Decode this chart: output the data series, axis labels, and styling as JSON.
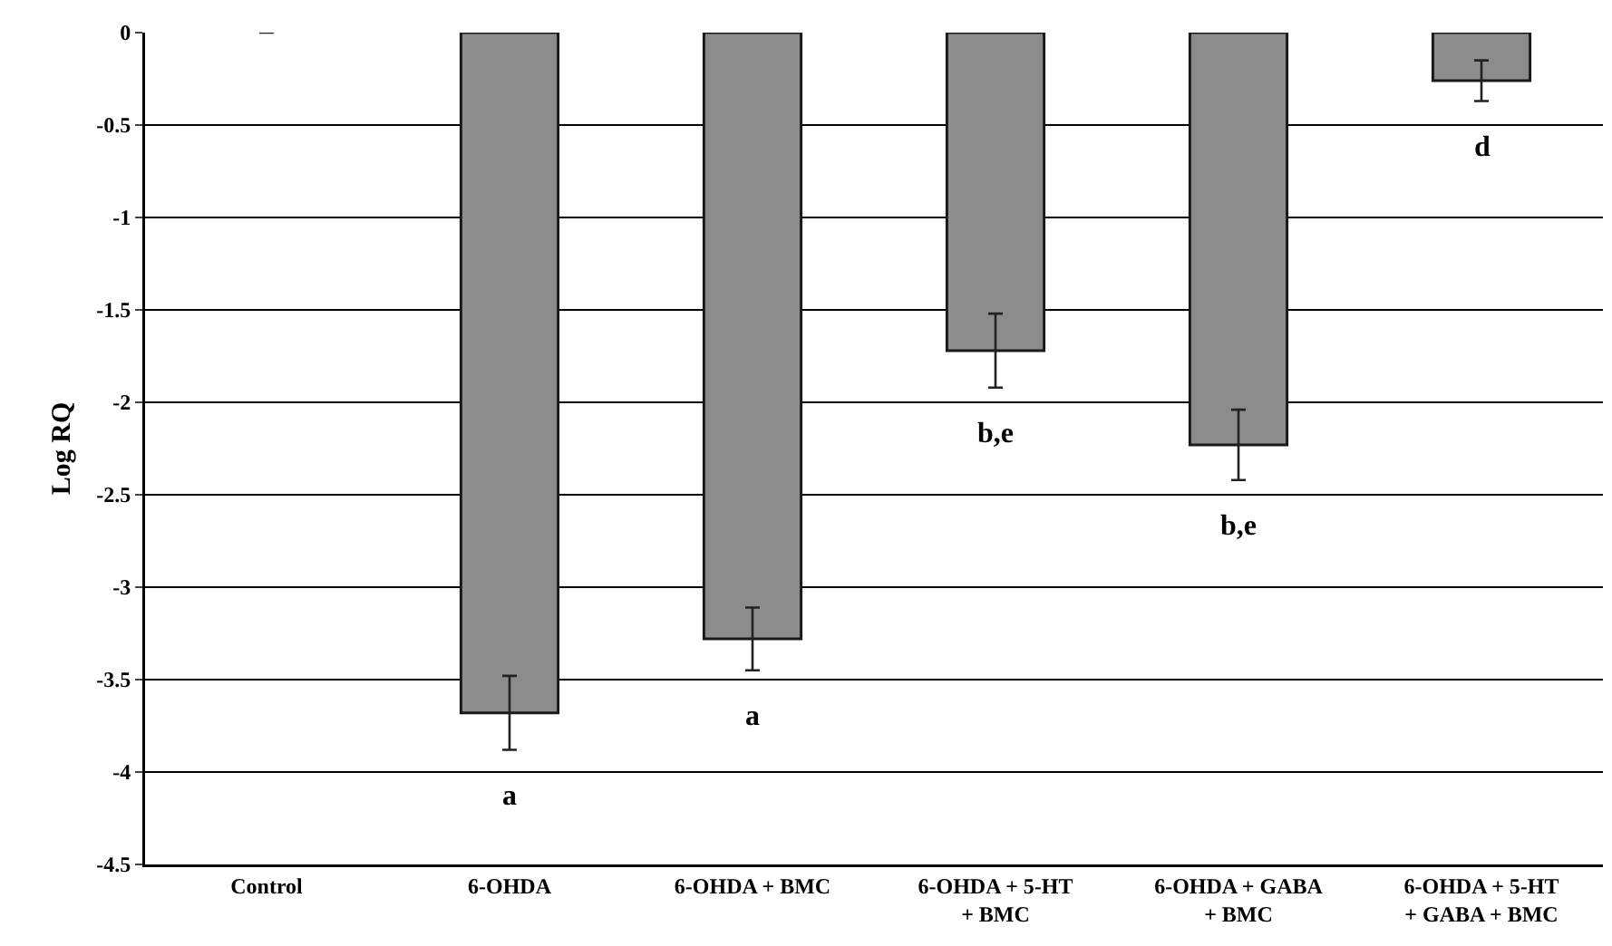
{
  "chart_data": {
    "type": "bar",
    "ylabel": "Log RQ",
    "categories": [
      "Control",
      "6-OHDA",
      "6-OHDA + BMC",
      "6-OHDA + 5-HT\n+ BMC",
      "6-OHDA + GABA\n+ BMC",
      "6-OHDA + 5-HT\n+ GABA + BMC"
    ],
    "values": [
      0,
      -3.68,
      -3.28,
      -1.72,
      -2.23,
      -0.26
    ],
    "errors": [
      null,
      0.2,
      0.17,
      0.2,
      0.19,
      0.11
    ],
    "color": "#8c8c8c",
    "ylim": [
      -4.5,
      0
    ],
    "yticks": [
      0,
      -0.5,
      -1,
      -1.5,
      -2,
      -2.5,
      -3,
      -3.5,
      -4,
      -4.5
    ],
    "grid": "y",
    "annotations": [
      {
        "text": "a",
        "x": "6-OHDA",
        "y": -3.68
      },
      {
        "text": "a",
        "x": "6-OHDA + BMC",
        "y": -3.28
      },
      {
        "text": "b,e",
        "x": "6-OHDA + 5-HT\n+ BMC",
        "y": -1.72
      },
      {
        "text": "b,e",
        "x": "6-OHDA + GABA\n+ BMC",
        "y": -2.23
      },
      {
        "text": "d",
        "x": "6-OHDA + 5-HT\n+ GABA + BMC",
        "y": -0.26
      }
    ]
  }
}
